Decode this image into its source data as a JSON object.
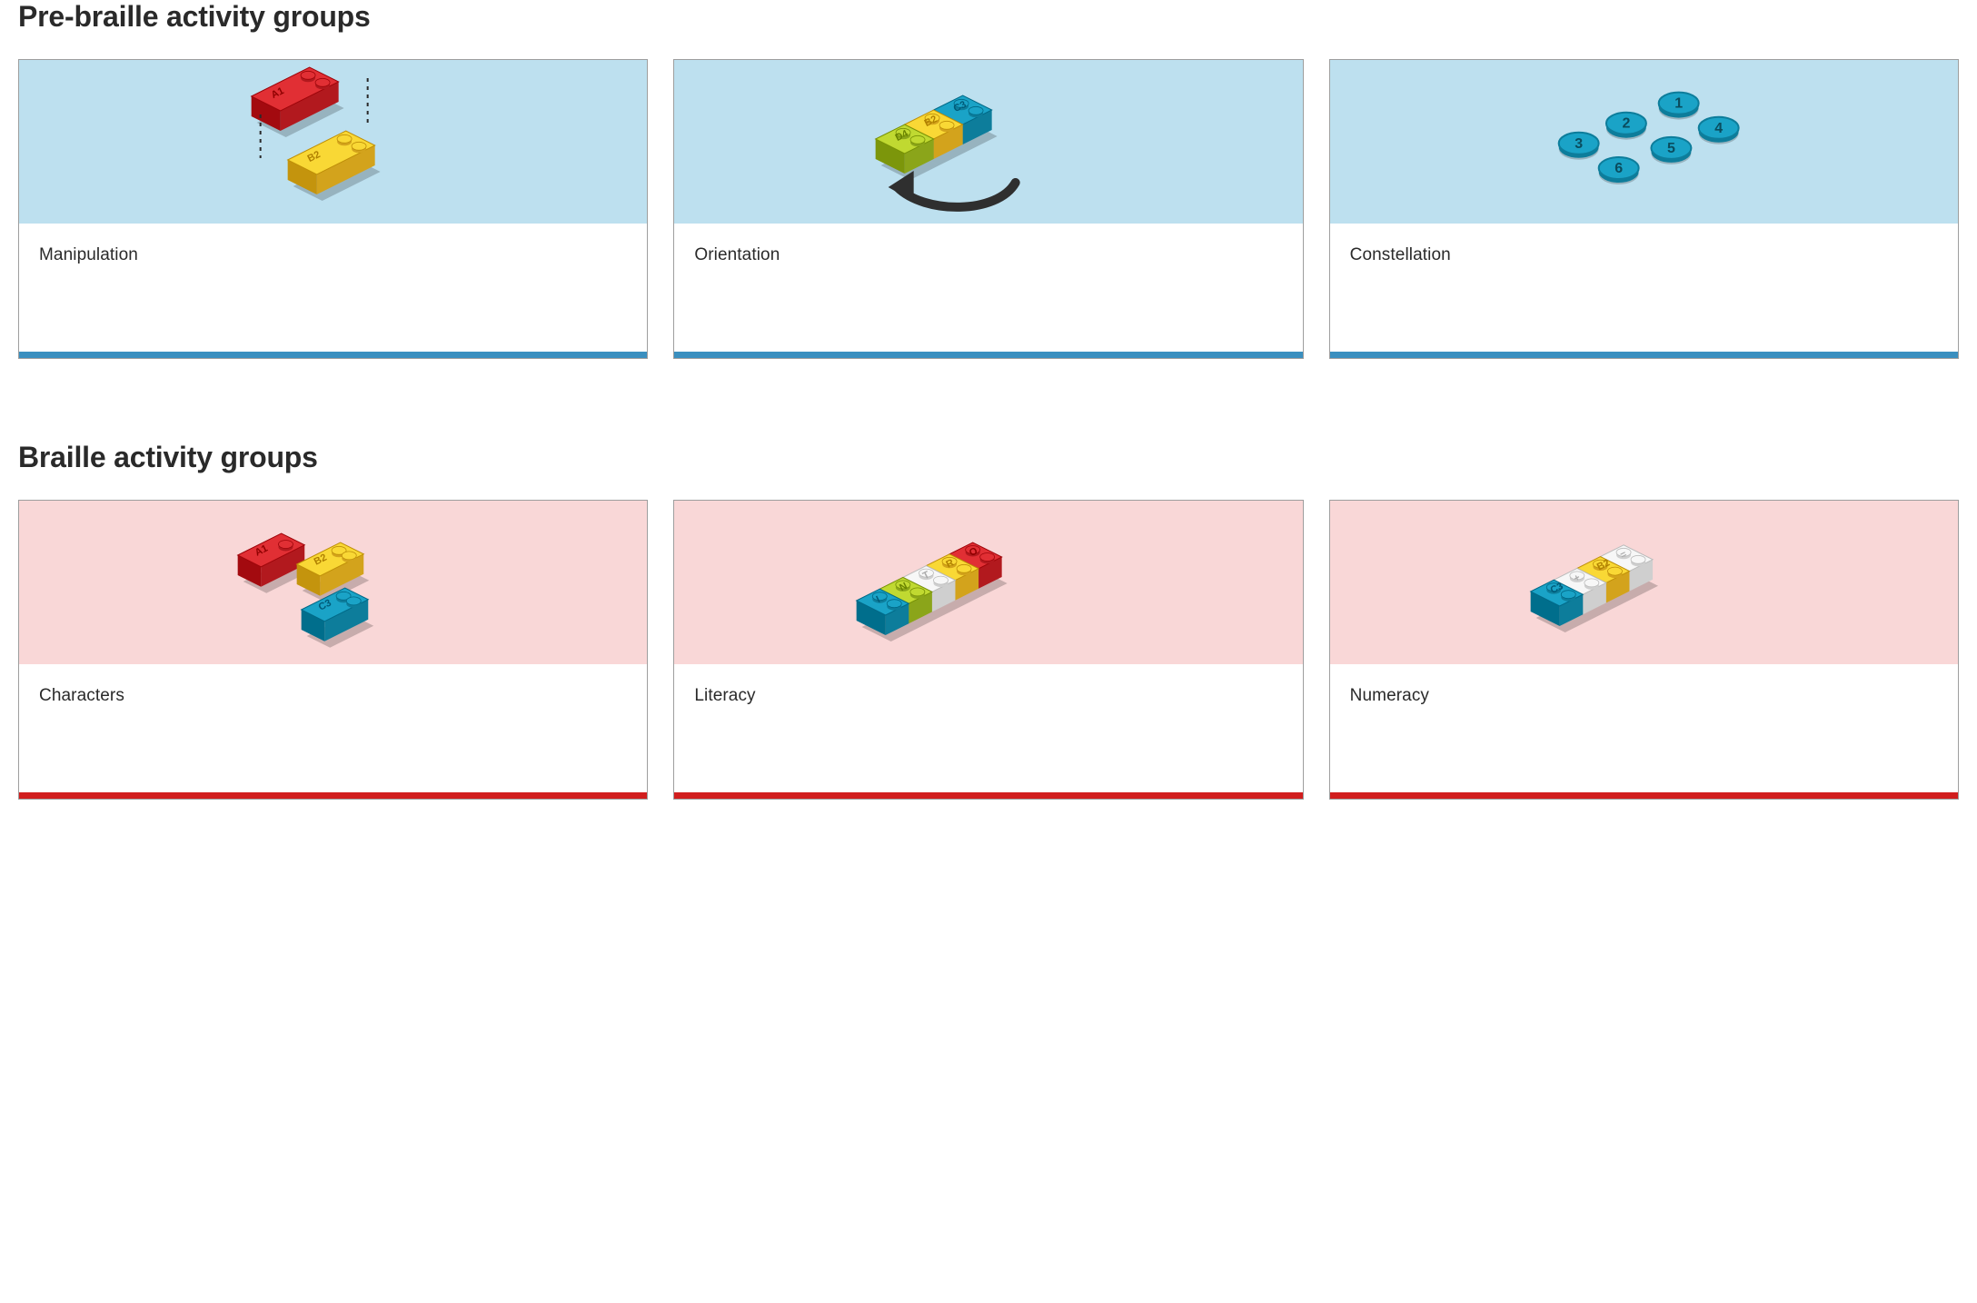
{
  "sections": [
    {
      "title": "Pre-braille activity groups",
      "stripe_color": "#3a8fbf",
      "illus_bg": "#bde0ef",
      "cards": [
        {
          "title": "Manipulation",
          "illus": "manipulation"
        },
        {
          "title": "Orientation",
          "illus": "orientation"
        },
        {
          "title": "Constellation",
          "illus": "constellation"
        }
      ]
    },
    {
      "title": "Braille activity groups",
      "stripe_color": "#d11e1e",
      "illus_bg": "#f9d7d7",
      "cards": [
        {
          "title": "Characters",
          "illus": "characters"
        },
        {
          "title": "Literacy",
          "illus": "literacy"
        },
        {
          "title": "Numeracy",
          "illus": "numeracy"
        }
      ]
    }
  ],
  "palette": {
    "red_top": "#e12f34",
    "red_side": "#b2191e",
    "yellow_top": "#f9d835",
    "yellow_side": "#d3a31c",
    "lime_top": "#c0d931",
    "lime_side": "#8ba51a",
    "cyan_top": "#1aa3c7",
    "cyan_side": "#0d7d9b",
    "white_top": "#f7f7f7",
    "white_side": "#cfcfcf",
    "stud": "#ffffff",
    "shadow": "rgba(0,0,0,0.20)",
    "arrow": "#2f2f2f",
    "disc_fill": "#1aa3c7",
    "disc_rim": "#0d7d9b",
    "disc_text": "#0a4c5e"
  },
  "illus_labels": {
    "manipulation": {
      "a": "A1",
      "b": "B2"
    },
    "orientation": {
      "d": "D4",
      "b": "B2",
      "c": "C3"
    },
    "characters": {
      "a": "A1",
      "b": "B2",
      "c": "C3"
    },
    "literacy": [
      "I",
      "N",
      "T",
      "R",
      "O"
    ],
    "numeracy": {
      "c": "C3",
      "plus": "+",
      "b": "B2",
      "eq": "="
    },
    "constellation": [
      "1",
      "2",
      "3",
      "4",
      "5",
      "6"
    ]
  }
}
